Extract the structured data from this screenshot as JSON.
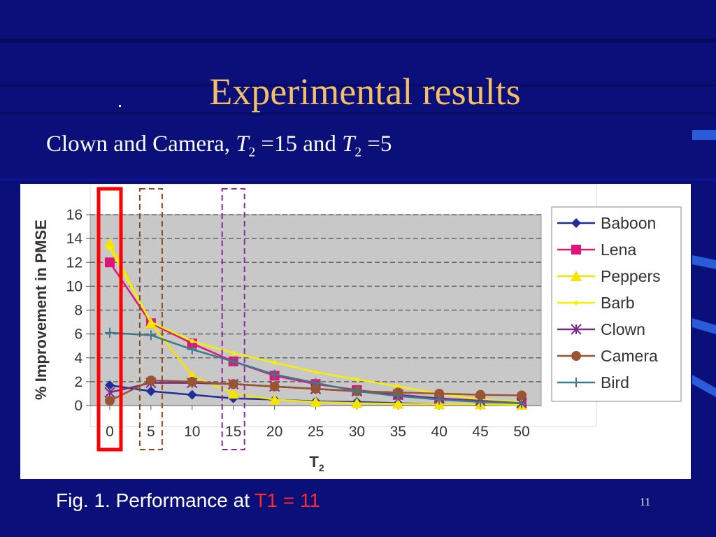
{
  "slide": {
    "title": "Experimental results",
    "subtitle_prefix": "Clown and Camera, ",
    "subtitle_t": "T",
    "subtitle_sub": "2",
    "subtitle_eq1": " =15 and ",
    "subtitle_eq2": " =5",
    "caption_prefix": "Fig. 1. Performance at ",
    "caption_highlight": "T1 = 11",
    "slide_number": "11"
  },
  "colors": {
    "background": "#0b0f7a",
    "title": "#f4c067",
    "caption_highlight": "#ff2a2a",
    "highlight_t0": "#ff0000",
    "highlight_t5": "#8b4a1c",
    "highlight_t15": "#8a2a9a"
  },
  "chart_data": {
    "type": "line",
    "ylabel": "% Improvement in PMSE",
    "xlabel": "T2",
    "x": [
      0,
      5,
      10,
      15,
      20,
      25,
      30,
      35,
      40,
      45,
      50
    ],
    "ylim": [
      0,
      16
    ],
    "yticks": [
      0,
      2,
      4,
      6,
      8,
      10,
      12,
      14,
      16
    ],
    "grid": true,
    "legend": "right",
    "highlighted_x": [
      0,
      5,
      15
    ],
    "series": [
      {
        "name": "Baboon",
        "color": "#1f2f99",
        "marker": "diamond",
        "values": [
          1.7,
          1.2,
          0.9,
          0.6,
          0.5,
          0.35,
          0.3,
          0.2,
          0.1,
          0.1,
          0.05
        ]
      },
      {
        "name": "Lena",
        "color": "#e0157a",
        "marker": "square",
        "values": [
          12.0,
          6.9,
          5.2,
          3.7,
          2.5,
          1.8,
          1.3,
          0.9,
          0.6,
          0.4,
          0.3
        ]
      },
      {
        "name": "Peppers",
        "color": "#f5e400",
        "marker": "triangle",
        "values": [
          13.6,
          6.9,
          2.5,
          1.0,
          0.5,
          0.3,
          0.2,
          0.15,
          0.1,
          0.1,
          0.05
        ]
      },
      {
        "name": "Barb",
        "color": "#f5f000",
        "marker": "dot",
        "values": [
          13.2,
          7.0,
          5.4,
          4.4,
          3.6,
          2.8,
          2.2,
          1.6,
          1.0,
          0.5,
          0.3
        ]
      },
      {
        "name": "Clown",
        "color": "#7a2a8a",
        "marker": "asterisk",
        "values": [
          1.1,
          1.9,
          1.9,
          1.8,
          1.6,
          1.4,
          1.2,
          0.9,
          0.6,
          0.4,
          0.2
        ]
      },
      {
        "name": "Camera",
        "color": "#9a5530",
        "marker": "circle",
        "values": [
          0.4,
          2.1,
          2.0,
          1.8,
          1.6,
          1.4,
          1.2,
          1.1,
          1.0,
          0.9,
          0.85
        ]
      },
      {
        "name": "Bird",
        "color": "#3a7a8a",
        "marker": "plus",
        "values": [
          6.1,
          5.9,
          4.7,
          3.7,
          2.6,
          1.9,
          1.2,
          0.8,
          0.5,
          0.3,
          0.2
        ]
      }
    ]
  }
}
